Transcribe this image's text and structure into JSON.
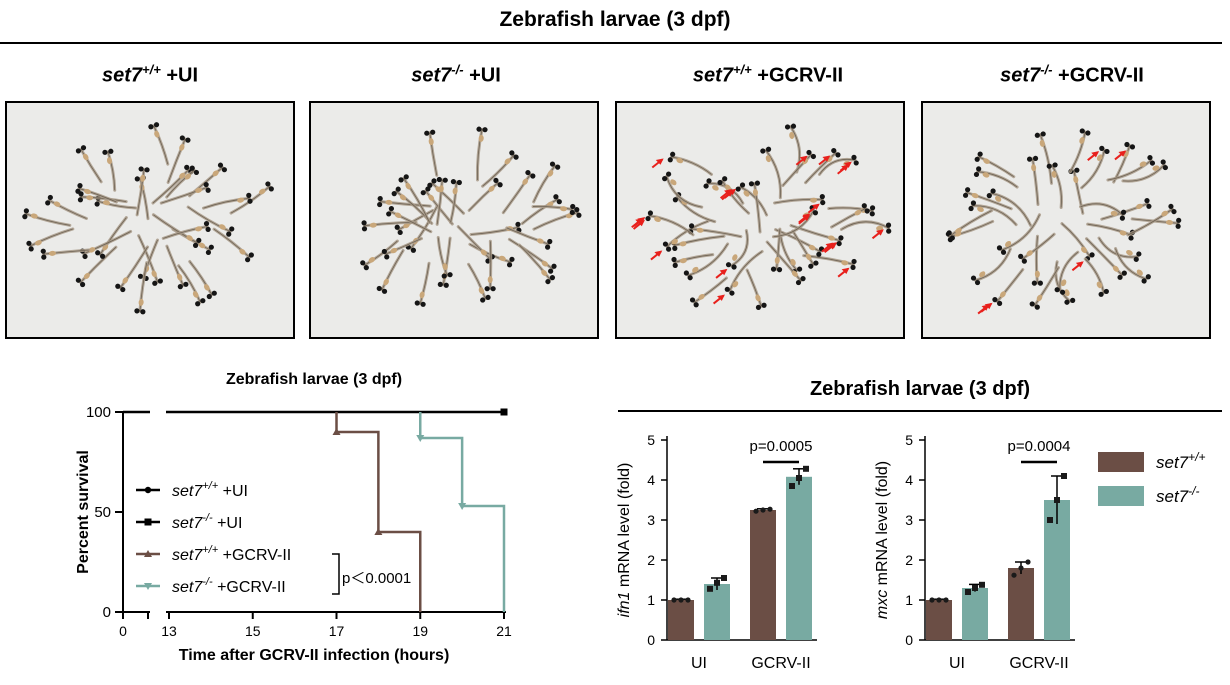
{
  "header": {
    "title": "Zebrafish larvae (3 dpf)"
  },
  "panels": [
    {
      "gene": "set7",
      "sup": "+/+",
      "condition": " +UI"
    },
    {
      "gene": "set7",
      "sup": "-/-",
      "condition": " +UI"
    },
    {
      "gene": "set7",
      "sup": "+/+",
      "condition": " +GCRV-II"
    },
    {
      "gene": "set7",
      "sup": "-/-",
      "condition": " +GCRV-II"
    }
  ],
  "colors": {
    "wt": "#6b4e45",
    "ko": "#78aaa2",
    "black": "#000000",
    "arrow": "#e8201c"
  },
  "survival": {
    "title": "Zebrafish larvae (3 dpf)",
    "pvalue": "p＜0.0001"
  },
  "bars_header": {
    "title": "Zebrafish larvae (3 dpf)"
  },
  "bar_legend": [
    {
      "gene": "set7",
      "sup": "+/+"
    },
    {
      "gene": "set7",
      "sup": "-/-"
    }
  ],
  "chart_data": [
    {
      "type": "line",
      "title": "Zebrafish larvae (3 dpf)",
      "xlabel": "Time after GCRV-II infection (hours)",
      "ylabel": "Percent survival",
      "xlim": [
        0,
        21
      ],
      "ylim": [
        0,
        100
      ],
      "x_ticks": [
        0,
        13,
        15,
        17,
        19,
        21
      ],
      "y_ticks": [
        0,
        50,
        100
      ],
      "axis_break": true,
      "legend_position": "left",
      "series": [
        {
          "name": "set7+/+ +UI",
          "gene": "set7",
          "sup": "+/+",
          "cond": " +UI",
          "marker": "circle",
          "color": "#000000",
          "x": [
            0,
            21
          ],
          "y": [
            100,
            100
          ]
        },
        {
          "name": "set7-/- +UI",
          "gene": "set7",
          "sup": "-/-",
          "cond": " +UI",
          "marker": "square",
          "color": "#000000",
          "x": [
            0,
            21
          ],
          "y": [
            100,
            100
          ]
        },
        {
          "name": "set7+/+ +GCRV-II",
          "gene": "set7",
          "sup": "+/+",
          "cond": " +GCRV-II",
          "marker": "triangle-up",
          "color": "#6b4e45",
          "x": [
            0,
            17,
            18,
            19
          ],
          "y": [
            100,
            90,
            40,
            0
          ]
        },
        {
          "name": "set7-/- +GCRV-II",
          "gene": "set7",
          "sup": "-/-",
          "cond": " +GCRV-II",
          "marker": "triangle-down",
          "color": "#78aaa2",
          "x": [
            0,
            19,
            20,
            21
          ],
          "y": [
            100,
            87,
            53,
            0
          ]
        }
      ],
      "annotation": "p＜0.0001"
    },
    {
      "type": "bar",
      "gene_label": "ifn1",
      "ylabel_suffix": " mRNA level (fold)",
      "categories": [
        "UI",
        "GCRV-II"
      ],
      "ylim": [
        0,
        5
      ],
      "y_ticks": [
        0,
        1,
        2,
        3,
        4,
        5
      ],
      "series": [
        {
          "name": "set7+/+",
          "values": [
            1.0,
            3.25
          ],
          "points": [
            [
              1.0,
              1.0,
              1.0
            ],
            [
              3.22,
              3.25,
              3.27
            ]
          ],
          "error": [
            0.02,
            0.03
          ]
        },
        {
          "name": "set7-/-",
          "values": [
            1.4,
            4.08
          ],
          "points": [
            [
              1.28,
              1.43,
              1.55
            ],
            [
              3.85,
              4.05,
              4.28
            ]
          ],
          "error": [
            0.15,
            0.2
          ]
        }
      ],
      "significance": {
        "label": "p=0.0005"
      }
    },
    {
      "type": "bar",
      "gene_label": "mxc",
      "ylabel_suffix": " mRNA level (fold)",
      "categories": [
        "UI",
        "GCRV-II"
      ],
      "ylim": [
        0,
        5
      ],
      "y_ticks": [
        0,
        1,
        2,
        3,
        4,
        5
      ],
      "series": [
        {
          "name": "set7+/+",
          "values": [
            1.0,
            1.8
          ],
          "points": [
            [
              1.0,
              1.0,
              1.0
            ],
            [
              1.62,
              1.8,
              1.95
            ]
          ],
          "error": [
            0.02,
            0.15
          ]
        },
        {
          "name": "set7-/-",
          "values": [
            1.3,
            3.5
          ],
          "points": [
            [
              1.2,
              1.3,
              1.38
            ],
            [
              3.0,
              3.5,
              4.1
            ]
          ],
          "error": [
            0.09,
            0.6
          ]
        }
      ],
      "significance": {
        "label": "p=0.0004"
      }
    }
  ]
}
